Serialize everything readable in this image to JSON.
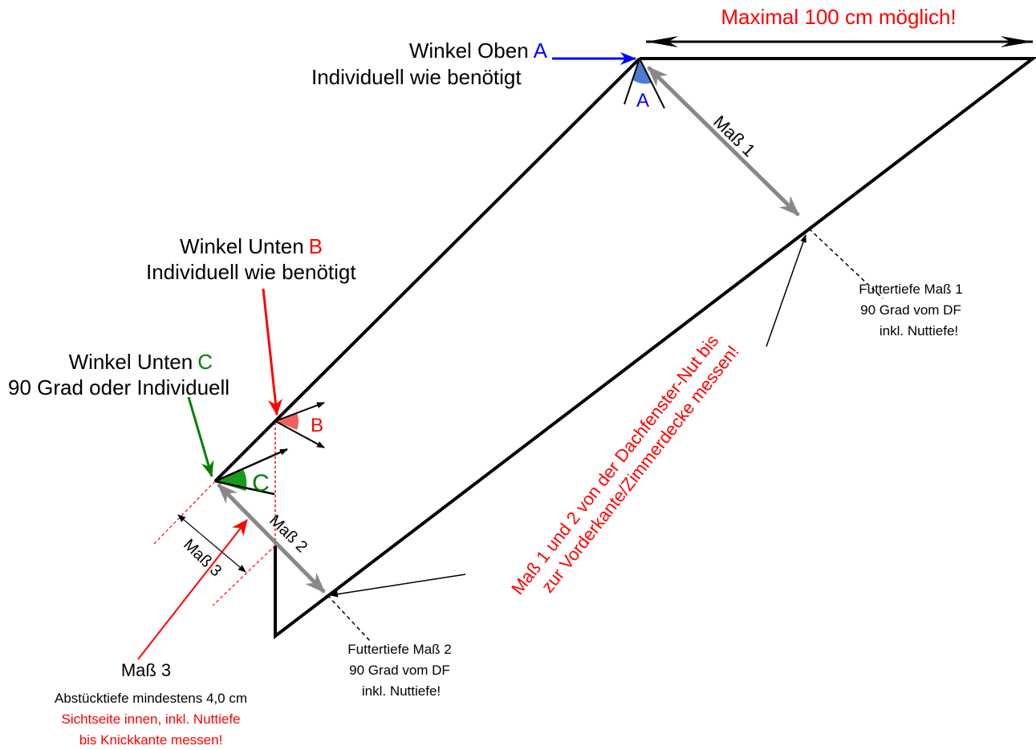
{
  "max_width": "Maximal 100 cm möglich!",
  "angle_a": {
    "title": "Winkel Oben",
    "letter": "A",
    "note": "Individuell wie benötigt",
    "mark": "A"
  },
  "angle_b": {
    "title": "Winkel Unten",
    "letter": "B",
    "note": "Individuell wie benötigt",
    "mark": "B"
  },
  "angle_c": {
    "title": "Winkel Unten",
    "letter": "C",
    "note": "90 Grad oder Individuell",
    "mark": "C"
  },
  "mass_1": "Maß 1",
  "mass_2": "Maß 2",
  "mass_3": "Maß 3",
  "futter_1": [
    "Futtertiefe Maß 1",
    "90 Grad vom DF",
    "inkl. Nuttiefe!"
  ],
  "futter_2": [
    "Futtertiefe Maß 2",
    "90 Grad vom DF",
    "inkl. Nuttiefe!"
  ],
  "measure_note": [
    "Maß 1 und 2 von der Dachfenster-Nut bis",
    "zur Vorderkante/Zimmerdecke messen!"
  ],
  "mass_3_note": {
    "title": "Maß 3",
    "lines": [
      "Abstücktiefe mindestens 4,0 cm",
      "Sichtseite innen, inkl. Nuttiefe",
      "bis Knickkante messen!"
    ]
  }
}
